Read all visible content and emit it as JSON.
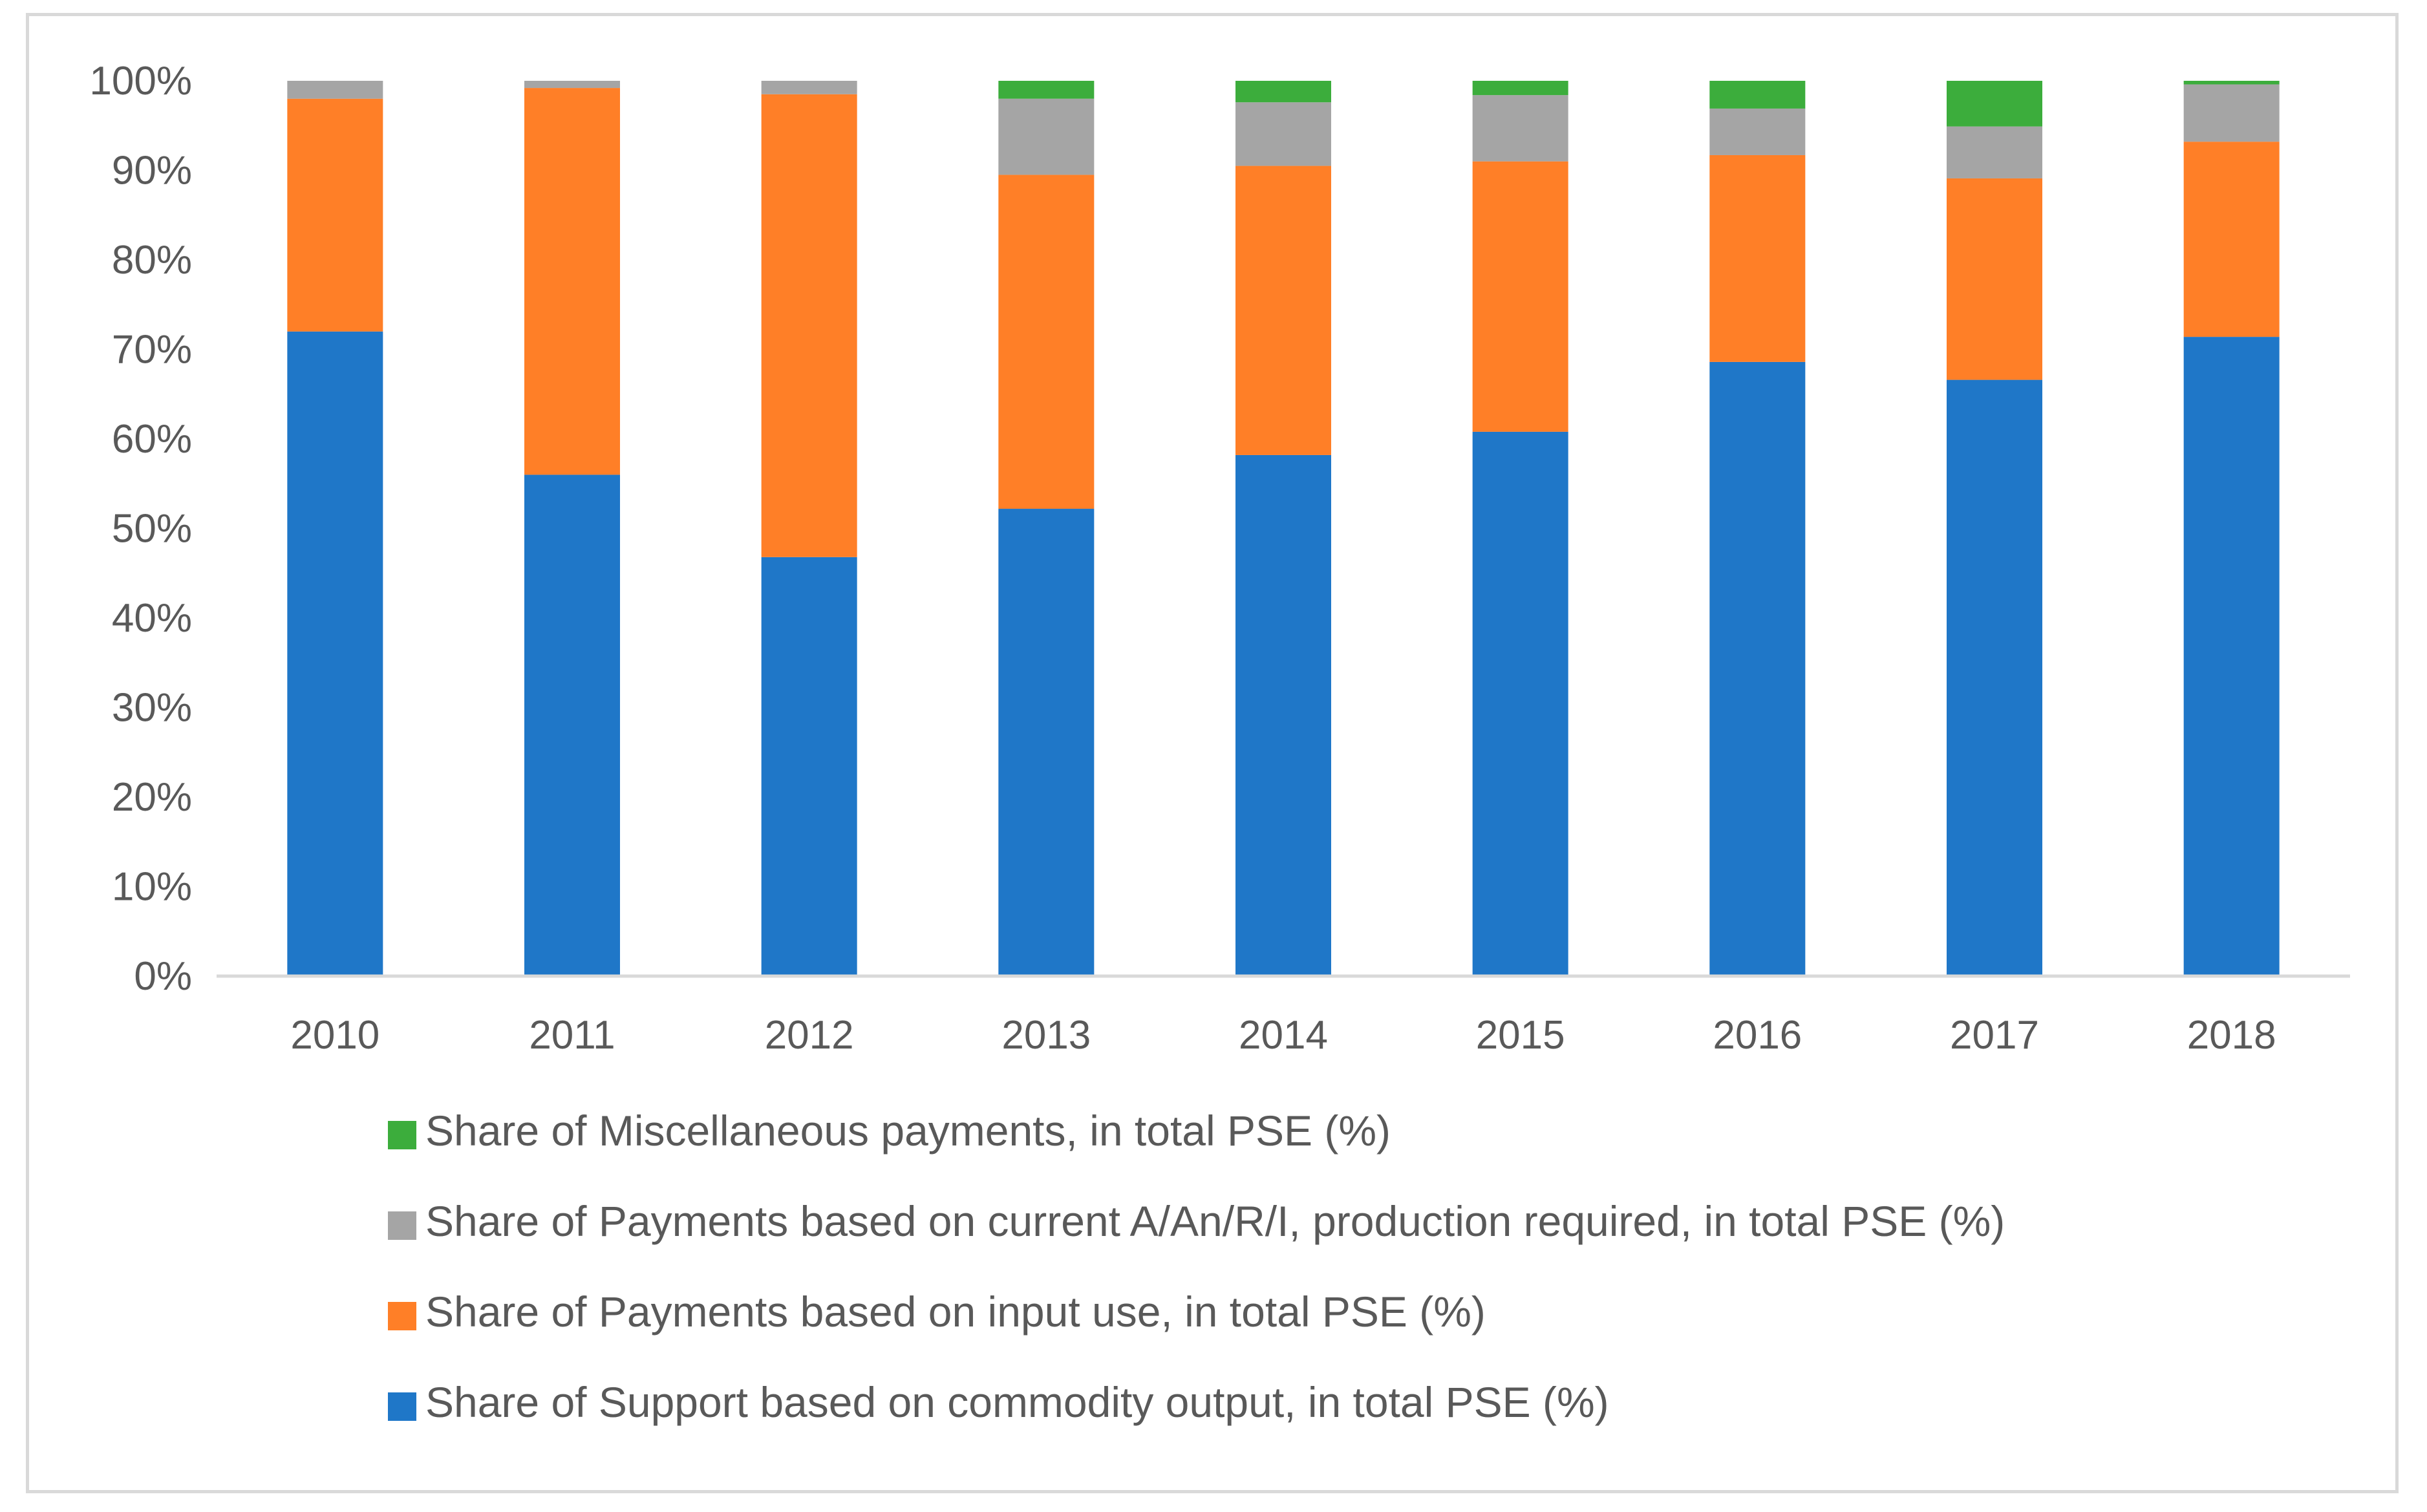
{
  "chart_data": {
    "type": "bar",
    "stacked": true,
    "title": "",
    "xlabel": "",
    "ylabel": "",
    "ylim": [
      0,
      100
    ],
    "ytick_step": 10,
    "ytick_labels": [
      "0%",
      "10%",
      "20%",
      "30%",
      "40%",
      "50%",
      "60%",
      "70%",
      "80%",
      "90%",
      "100%"
    ],
    "grid": false,
    "legend_position": "bottom",
    "categories": [
      "2010",
      "2011",
      "2012",
      "2013",
      "2014",
      "2015",
      "2016",
      "2017",
      "2018"
    ],
    "series": [
      {
        "name": "Share of Support based on commodity output, in total PSE (%)",
        "color": "#1f77c8",
        "values": [
          72.0,
          56.0,
          46.8,
          52.2,
          58.2,
          60.8,
          68.6,
          66.6,
          71.4
        ]
      },
      {
        "name": "Share of Payments based on input use, in total PSE (%)",
        "color": "#ff7f27",
        "values": [
          26.0,
          43.2,
          51.7,
          37.3,
          32.3,
          30.2,
          23.1,
          22.5,
          21.8
        ]
      },
      {
        "name": "Share of Payments based on current A/An/R/I, production required, in total PSE (%)",
        "color": "#a5a5a5",
        "values": [
          2.0,
          0.8,
          1.5,
          8.5,
          7.1,
          7.4,
          5.2,
          5.8,
          6.4
        ]
      },
      {
        "name": "Share of Miscellaneous payments, in total PSE (%)",
        "color": "#3cad3c",
        "values": [
          0.0,
          0.0,
          0.0,
          2.0,
          2.4,
          1.6,
          3.1,
          5.1,
          0.4
        ]
      }
    ],
    "legend_order": [
      3,
      2,
      1,
      0
    ]
  }
}
